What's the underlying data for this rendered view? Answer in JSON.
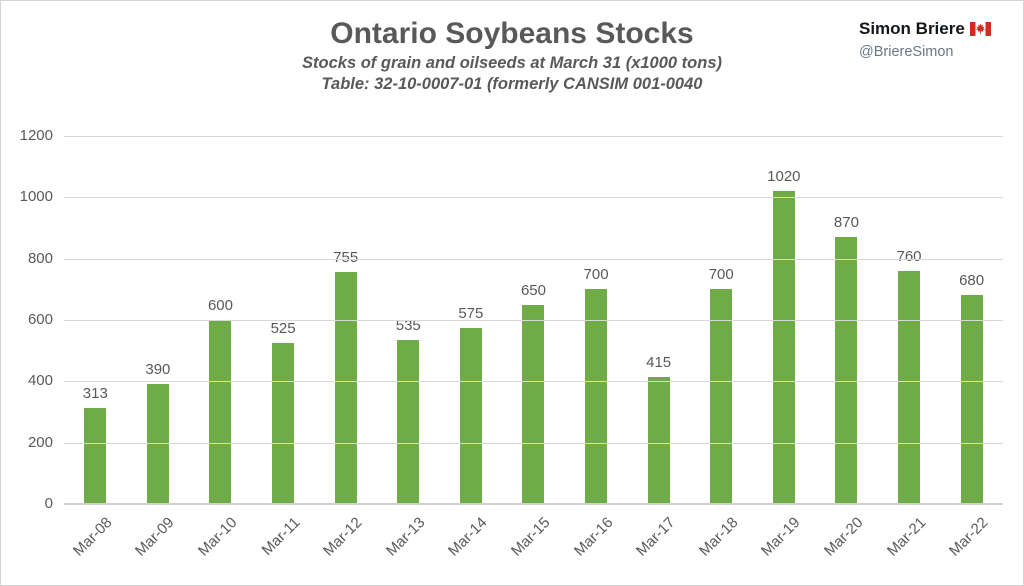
{
  "header": {
    "title": "Ontario Soybeans Stocks",
    "subtitle": "Stocks of grain and oilseeds at March 31 (x1000 tons)",
    "source_note": "Table: 32-10-0007-01 (formerly CANSIM 001-0040"
  },
  "attribution": {
    "name": "Simon Briere",
    "handle": "@BriereSimon",
    "flag": "canada-flag-icon"
  },
  "chart_data": {
    "type": "bar",
    "title": "Ontario Soybeans Stocks",
    "subtitle": "Stocks of grain and oilseeds at March 31 (x1000 tons)",
    "source_note": "Table: 32-10-0007-01 (formerly CANSIM 001-0040",
    "categories": [
      "Mar-08",
      "Mar-09",
      "Mar-10",
      "Mar-11",
      "Mar-12",
      "Mar-13",
      "Mar-14",
      "Mar-15",
      "Mar-16",
      "Mar-17",
      "Mar-18",
      "Mar-19",
      "Mar-20",
      "Mar-21",
      "Mar-22"
    ],
    "values": [
      313,
      390,
      600,
      525,
      755,
      535,
      575,
      650,
      700,
      415,
      700,
      1020,
      870,
      760,
      680
    ],
    "xlabel": "",
    "ylabel": "",
    "ylim": [
      0,
      1200
    ],
    "yticks": [
      0,
      200,
      400,
      600,
      800,
      1000,
      1200
    ],
    "grid": "horizontal",
    "legend": "none",
    "data_labels": true,
    "x_label_rotation_deg": -45
  },
  "colors": {
    "bar": "#6fac47",
    "text": "#595959",
    "gridline": "#d9d9d9",
    "baseline": "#d0d0d0",
    "attribution_name": "#14171a",
    "attribution_handle": "#697882",
    "flag_red": "#d52b1e",
    "background": "#ffffff"
  }
}
